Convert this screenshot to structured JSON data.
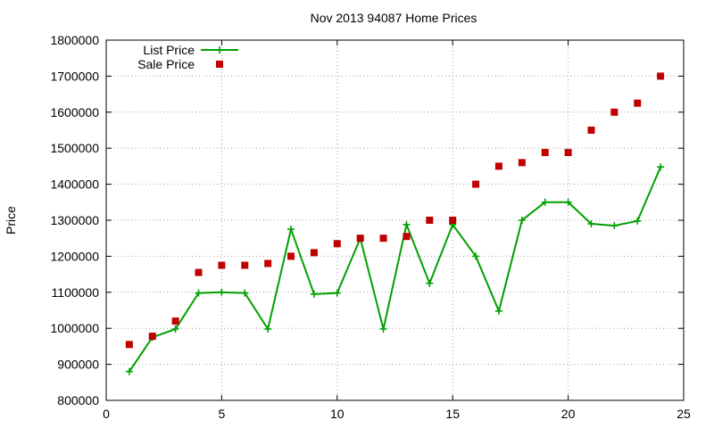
{
  "chart_data": {
    "type": "line",
    "title": "Nov 2013 94087 Home Prices",
    "xlabel": "",
    "ylabel": "Price",
    "xlim": [
      0,
      25
    ],
    "ylim": [
      800000,
      1800000
    ],
    "xticks": [
      0,
      5,
      10,
      15,
      20,
      25
    ],
    "yticks": [
      800000,
      900000,
      1000000,
      1100000,
      1200000,
      1300000,
      1400000,
      1500000,
      1600000,
      1700000,
      1800000
    ],
    "grid": true,
    "legend_position": "top-left",
    "series": [
      {
        "name": "List Price",
        "style": "lines+points",
        "marker": "plus",
        "color": "#00a000",
        "x": [
          1,
          2,
          3,
          4,
          5,
          6,
          7,
          8,
          9,
          10,
          11,
          12,
          13,
          14,
          15,
          16,
          17,
          18,
          19,
          20,
          21,
          22,
          23,
          24
        ],
        "values": [
          880000,
          975000,
          998000,
          1098000,
          1100000,
          1098000,
          998000,
          1275000,
          1095000,
          1098000,
          1250000,
          998000,
          1288000,
          1125000,
          1288000,
          1200000,
          1048000,
          1300000,
          1350000,
          1350000,
          1290000,
          1285000,
          1298000,
          1448000
        ]
      },
      {
        "name": "Sale Price",
        "style": "points",
        "marker": "square",
        "color": "#c00000",
        "x": [
          1,
          2,
          3,
          4,
          5,
          6,
          7,
          8,
          9,
          10,
          11,
          12,
          13,
          14,
          15,
          16,
          17,
          18,
          19,
          20,
          21,
          22,
          23,
          24
        ],
        "values": [
          955000,
          978000,
          1020000,
          1155000,
          1175000,
          1175000,
          1180000,
          1200000,
          1210000,
          1235000,
          1250000,
          1250000,
          1255000,
          1300000,
          1300000,
          1400000,
          1450000,
          1460000,
          1488000,
          1488000,
          1550000,
          1600000,
          1625000,
          1700000
        ]
      }
    ]
  }
}
